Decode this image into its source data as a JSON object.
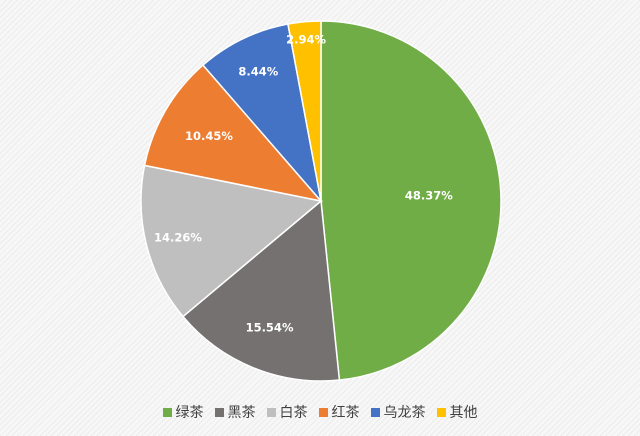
{
  "chart_data": {
    "type": "pie",
    "title": "",
    "slices": [
      {
        "label": "绿茶",
        "value": 48.37,
        "value_label": "48.37%",
        "color": "#70ad47"
      },
      {
        "label": "黑茶",
        "value": 15.54,
        "value_label": "15.54%",
        "color": "#757171"
      },
      {
        "label": "白茶",
        "value": 14.26,
        "value_label": "14.26%",
        "color": "#bfbfbf"
      },
      {
        "label": "红茶",
        "value": 10.45,
        "value_label": "10.45%",
        "color": "#ed7d31"
      },
      {
        "label": "乌龙茶",
        "value": 8.44,
        "value_label": "8.44%",
        "color": "#4472c4"
      },
      {
        "label": "其他",
        "value": 2.94,
        "value_label": "2.94%",
        "color": "#ffc000"
      }
    ],
    "legend_position": "bottom",
    "start_angle": "12 o'clock",
    "direction": "clockwise"
  }
}
